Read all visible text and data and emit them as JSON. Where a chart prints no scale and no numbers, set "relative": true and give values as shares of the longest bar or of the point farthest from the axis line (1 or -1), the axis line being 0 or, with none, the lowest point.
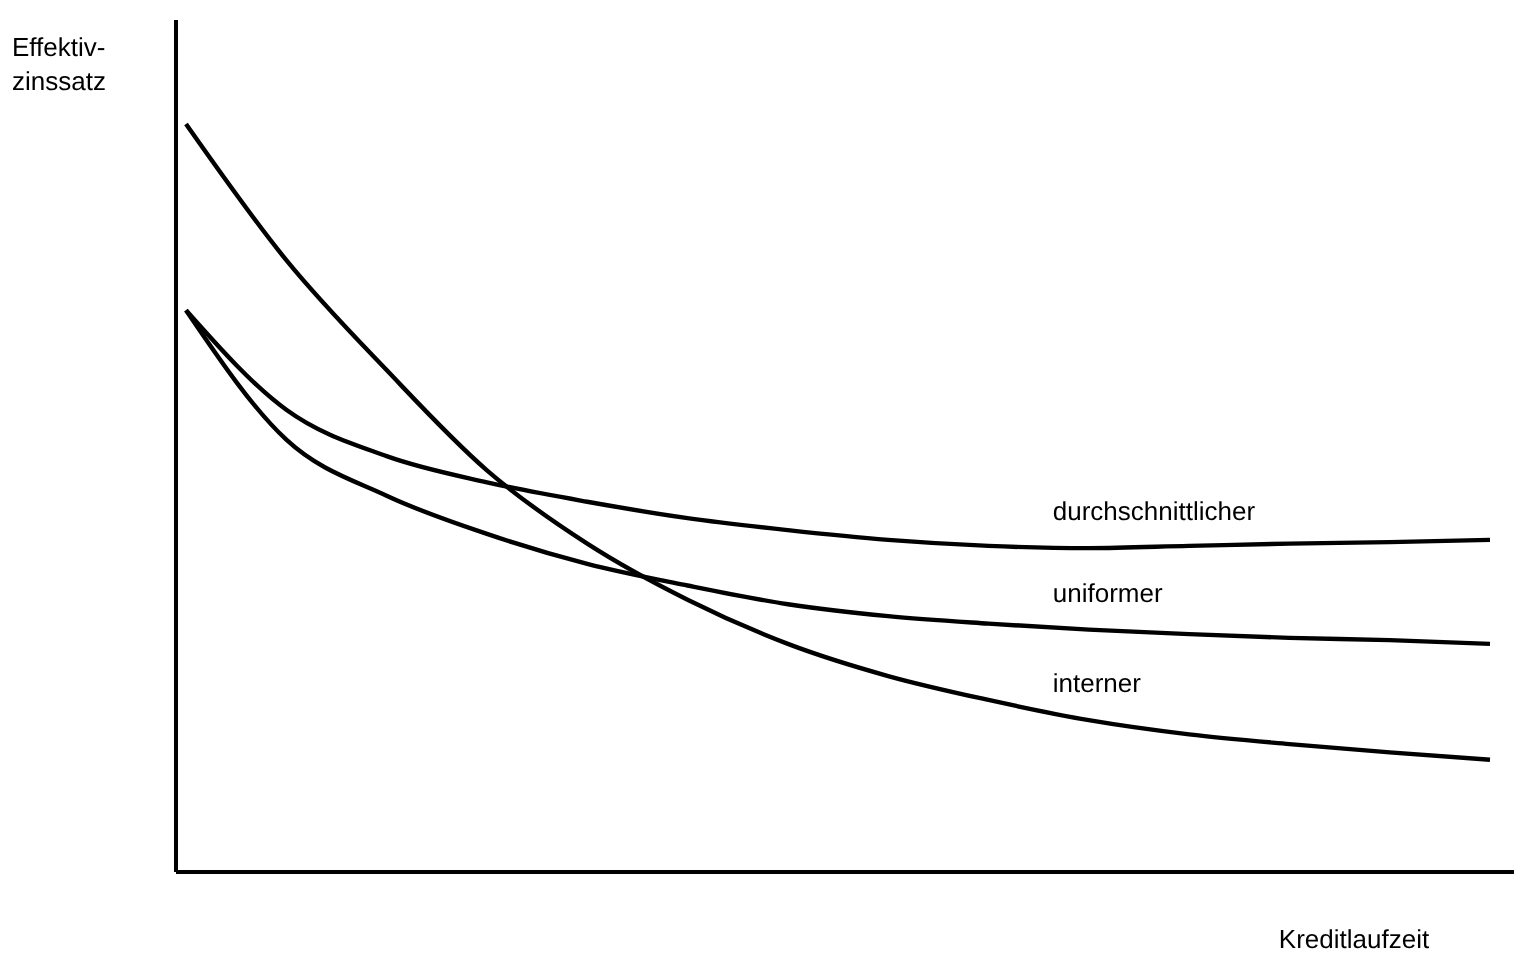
{
  "chart_data": {
    "type": "line",
    "relative": true,
    "xlabel": "Kreditlaufzeit",
    "ylabel": "Effektiv-\nzinssatz",
    "legend": false,
    "marker": "none",
    "line_style": "solid",
    "categories": [
      null,
      null,
      null,
      null,
      null,
      null,
      null,
      null,
      null,
      null,
      null,
      null,
      null,
      null
    ],
    "series": [
      {
        "name": "durchschnittlicher",
        "color": "#000000",
        "values": [
          0.751,
          0.618,
          0.556,
          0.521,
          0.495,
          0.473,
          0.457,
          0.444,
          0.436,
          0.433,
          0.436,
          0.439,
          0.441,
          0.444
        ]
      },
      {
        "name": "uniformer",
        "color": "#000000",
        "values": [
          0.751,
          0.578,
          0.503,
          0.452,
          0.412,
          0.383,
          0.358,
          0.342,
          0.332,
          0.324,
          0.318,
          0.313,
          0.31,
          0.305
        ]
      },
      {
        "name": "interner",
        "color": "#000000",
        "values": [
          1.0,
          0.818,
          0.671,
          0.537,
          0.439,
          0.364,
          0.305,
          0.262,
          0.23,
          0.203,
          0.184,
          0.171,
          0.16,
          0.15
        ]
      }
    ]
  }
}
